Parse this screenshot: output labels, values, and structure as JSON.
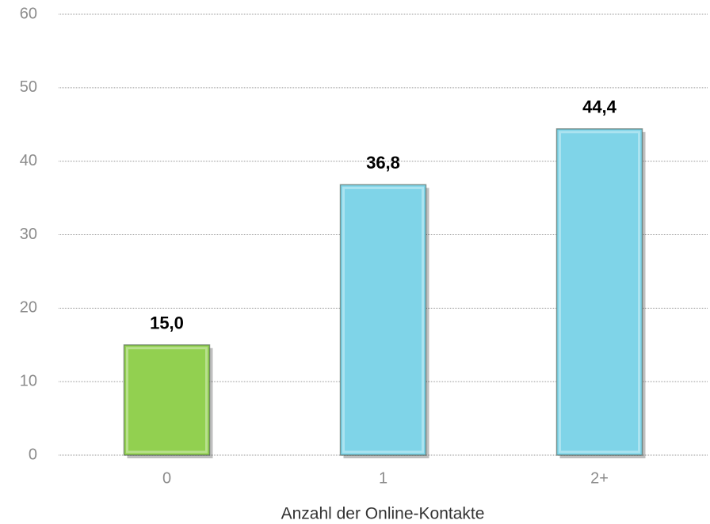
{
  "chart_data": {
    "type": "bar",
    "x_label": "Anzahl der Online-Kontakte",
    "categories": [
      "0",
      "1",
      "2+"
    ],
    "values": [
      15.0,
      36.8,
      44.4
    ],
    "value_labels": [
      "15,0",
      "36,8",
      "44,4"
    ],
    "colors": [
      "#92d050",
      "#7fd4e8",
      "#7fd4e8"
    ],
    "ylim": [
      0,
      60
    ],
    "yticks": [
      0,
      10,
      20,
      30,
      40,
      50,
      60
    ],
    "grid": true
  }
}
